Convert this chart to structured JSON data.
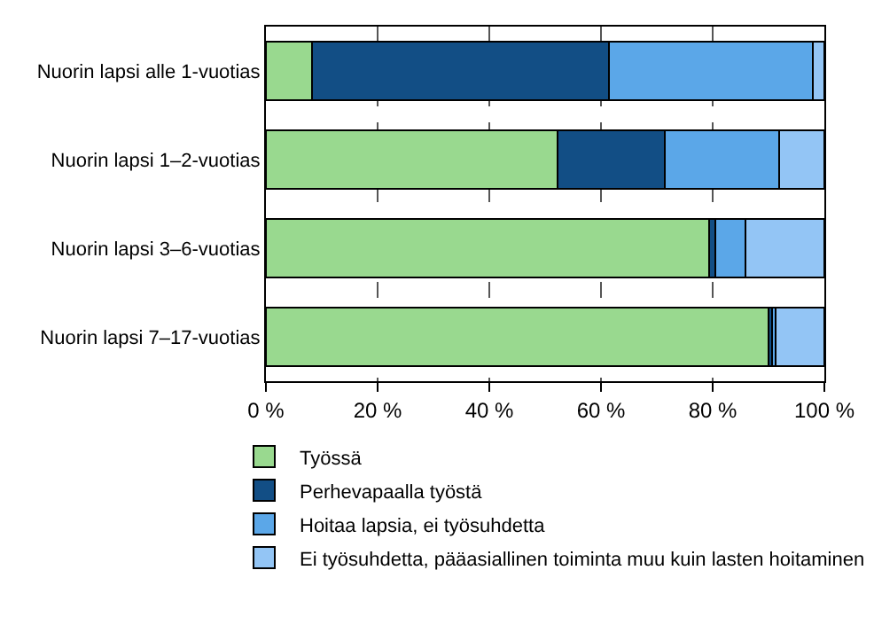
{
  "chart_data": {
    "type": "bar",
    "orientation": "horizontal",
    "stacked": true,
    "categories": [
      "Nuorin lapsi alle 1-vuotias",
      "Nuorin lapsi 1–2-vuotias",
      "Nuorin lapsi 3–6-vuotias",
      "Nuorin lapsi 7–17-vuotias"
    ],
    "series": [
      {
        "name": "Työssä",
        "color": "#99d98f",
        "values": [
          8.3,
          52.2,
          79.4,
          90.0
        ]
      },
      {
        "name": "Perhevapaalla työstä",
        "color": "#124e85",
        "values": [
          53.1,
          19.3,
          1.1,
          0.6
        ]
      },
      {
        "name": "Hoitaa lapsia, ei työsuhdetta",
        "color": "#5ba7e8",
        "values": [
          36.6,
          20.4,
          5.3,
          0.7
        ]
      },
      {
        "name": "Ei työsuhdetta, pääasiallinen toiminta muu kuin lasten hoitaminen",
        "color": "#93c5f5",
        "values": [
          2.0,
          8.1,
          14.2,
          8.7
        ]
      }
    ],
    "xlim": [
      0,
      100
    ],
    "xticks": [
      {
        "value": 0,
        "label": "0 %"
      },
      {
        "value": 20,
        "label": "20 %"
      },
      {
        "value": 40,
        "label": "40 %"
      },
      {
        "value": 60,
        "label": "60 %"
      },
      {
        "value": 80,
        "label": "80 %"
      },
      {
        "value": 100,
        "label": "100 %"
      }
    ],
    "grid": "x",
    "legend": "bottom"
  }
}
